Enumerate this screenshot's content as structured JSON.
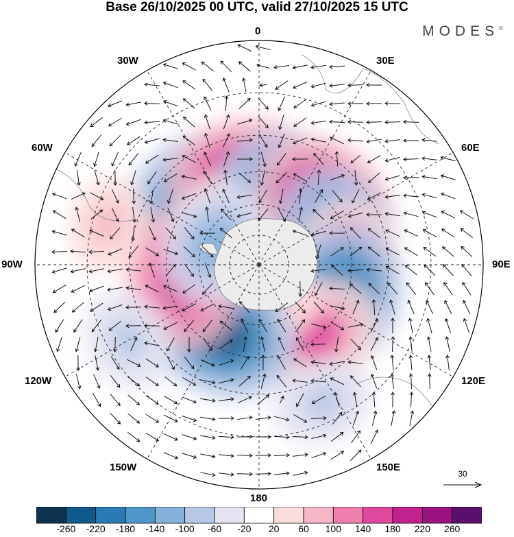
{
  "title": "Base 26/10/2025 00 UTC, valid 27/10/2025 15 UTC",
  "brand": "MODES",
  "brand_mark": "©",
  "longitude_labels": {
    "top": "0",
    "bottom": "180",
    "left": "90W",
    "right": "90E",
    "ul1": "30W",
    "ul2": "60W",
    "ur1": "30E",
    "ur2": "60E",
    "ll1": "120W",
    "ll2": "150W",
    "lr1": "120E",
    "lr2": "150E"
  },
  "reference_vector": "30",
  "colorbar": {
    "colors": [
      "#0d3350",
      "#0f5a8a",
      "#2a7bb5",
      "#4f97c9",
      "#84b2da",
      "#b6c8e6",
      "#e3e3f1",
      "#ffffff",
      "#fbdcdc",
      "#f6b6c6",
      "#f07fb0",
      "#e04a9e",
      "#c2228e",
      "#9a1280",
      "#5a0e6e"
    ],
    "tick_labels": [
      "-260",
      "-220",
      "-180",
      "-140",
      "-100",
      "-60",
      "-20",
      "20",
      "60",
      "100",
      "140",
      "180",
      "220",
      "260"
    ]
  },
  "anomaly_centers": [
    {
      "lon": -45,
      "lat": -45,
      "value": -200
    },
    {
      "lon": -10,
      "lat": -48,
      "value": 220
    },
    {
      "lon": -30,
      "lat": -60,
      "value": 100
    },
    {
      "lon": 25,
      "lat": -52,
      "value": -210
    },
    {
      "lon": 50,
      "lat": -48,
      "value": 230
    },
    {
      "lon": 72,
      "lat": -50,
      "value": -200
    },
    {
      "lon": 90,
      "lat": -47,
      "value": 160
    },
    {
      "lon": 113,
      "lat": -48,
      "value": -220
    },
    {
      "lon": 140,
      "lat": -45,
      "value": 150
    },
    {
      "lon": 165,
      "lat": -70,
      "value": 80
    },
    {
      "lon": -150,
      "lat": -52,
      "value": -230
    },
    {
      "lon": -100,
      "lat": -52,
      "value": 190
    },
    {
      "lon": -65,
      "lat": -65,
      "value": -140
    },
    {
      "lon": -120,
      "lat": -22,
      "value": -80
    },
    {
      "lon": -75,
      "lat": -20,
      "value": 60
    },
    {
      "lon": 155,
      "lat": -22,
      "value": -80
    }
  ]
}
